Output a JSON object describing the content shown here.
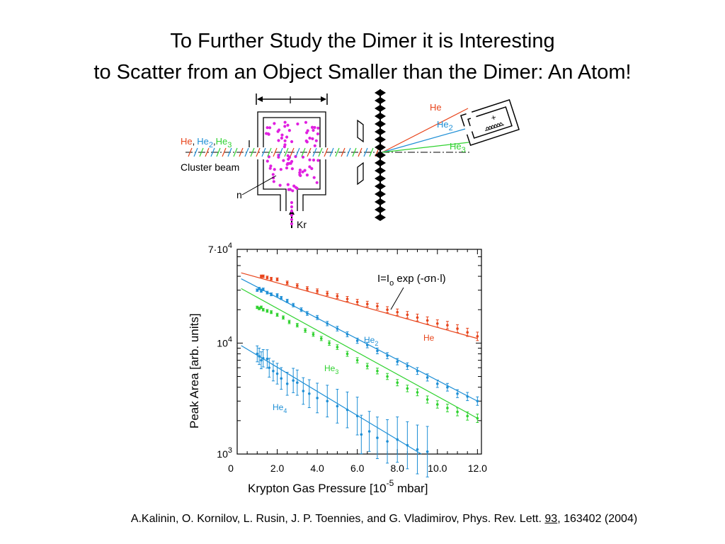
{
  "slide": {
    "title_line1": "To Further Study the Dimer it is Interesting",
    "title_line2": "to Scatter from an Object Smaller than the Dimer: An Atom!",
    "citation_authors": "A.Kalinin, O. Kornilov, L. Rusin, J. P. Toennies, and G. Vladimirov, Phys. Rev. Lett. ",
    "citation_volume": "93",
    "citation_rest": ", 163402 (2004)"
  },
  "diagram": {
    "length_label": "l",
    "beam_label_he": "He",
    "beam_label_he2": "He",
    "beam_label_he2_sub": "2",
    "beam_label_he3": "He",
    "beam_label_he3_sub": "3",
    "beam_label_sep": ",",
    "cluster_beam_label": "Cluster beam",
    "density_label": "n",
    "gas_label": "Kr",
    "detector_plus": "+",
    "scatter_he": "He",
    "scatter_he2": "He",
    "scatter_he2_sub": "2",
    "scatter_he3": "He",
    "scatter_he3_sub": "3",
    "colors": {
      "he": "#e8451c",
      "he2": "#1e8fd6",
      "he3": "#2fd22f",
      "dots": "#e020e0"
    }
  },
  "chart_data": {
    "type": "scatter",
    "xlabel_prefix": "Krypton Gas Pressure [10",
    "xlabel_exp": "-5",
    "xlabel_suffix": " mbar]",
    "ylabel": "Peak Area [arb. units]",
    "x_tick_labels": [
      "0",
      "2.0",
      "4.0",
      "6.0",
      "8.0",
      "10.0",
      "12.0"
    ],
    "y_tick_labels": [
      {
        "base": "10",
        "exp": "3",
        "value": 1000
      },
      {
        "base": "10",
        "exp": "4",
        "value": 10000
      },
      {
        "base": "7·10",
        "exp": "4",
        "value": 70000
      }
    ],
    "xlim": [
      0,
      12.2
    ],
    "ylim": [
      1000,
      70000
    ],
    "y_scale": "log",
    "formula_prefix": "I=I",
    "formula_sub": "o",
    "formula_rest": " exp (-σn·l)",
    "series": [
      {
        "name": "He",
        "label_main": "He",
        "label_sub": "",
        "color": "#e8451c",
        "fit": [
          [
            0.2,
            43000
          ],
          [
            12.0,
            11000
          ]
        ],
        "points": [
          [
            1.2,
            40000
          ],
          [
            1.3,
            40000
          ],
          [
            1.5,
            39000
          ],
          [
            1.7,
            38000
          ],
          [
            2.0,
            37500
          ],
          [
            2.5,
            35000
          ],
          [
            3.0,
            33000
          ],
          [
            3.5,
            31000
          ],
          [
            4.0,
            29500
          ],
          [
            4.5,
            28000
          ],
          [
            5.0,
            26500
          ],
          [
            5.5,
            25000
          ],
          [
            6.0,
            23500
          ],
          [
            6.5,
            22500
          ],
          [
            7.0,
            21500
          ],
          [
            7.5,
            20000
          ],
          [
            8.0,
            19000
          ],
          [
            8.5,
            18000
          ],
          [
            9.0,
            17000
          ],
          [
            9.5,
            16000
          ],
          [
            10.0,
            15000
          ],
          [
            10.5,
            14500
          ],
          [
            11.0,
            13500
          ],
          [
            11.5,
            12500
          ],
          [
            12.0,
            11500
          ]
        ]
      },
      {
        "name": "He2",
        "label_main": "He",
        "label_sub": "2",
        "color": "#1e8fd6",
        "fit": [
          [
            0.2,
            38000
          ],
          [
            12.0,
            3000
          ]
        ],
        "points": [
          [
            1.0,
            30000
          ],
          [
            1.1,
            31000
          ],
          [
            1.2,
            29500
          ],
          [
            1.3,
            30500
          ],
          [
            1.5,
            28500
          ],
          [
            1.7,
            27500
          ],
          [
            2.0,
            27000
          ],
          [
            2.2,
            25500
          ],
          [
            2.5,
            24000
          ],
          [
            2.8,
            22000
          ],
          [
            3.2,
            20000
          ],
          [
            3.5,
            18500
          ],
          [
            4.0,
            17000
          ],
          [
            4.5,
            15000
          ],
          [
            5.0,
            13500
          ],
          [
            5.5,
            12000
          ],
          [
            6.0,
            10500
          ],
          [
            6.5,
            9600
          ],
          [
            7.0,
            8500
          ],
          [
            7.5,
            7700
          ],
          [
            8.0,
            6800
          ],
          [
            8.5,
            6200
          ],
          [
            9.0,
            5600
          ],
          [
            9.5,
            4900
          ],
          [
            10.0,
            4300
          ],
          [
            10.5,
            4000
          ],
          [
            11.0,
            3500
          ],
          [
            11.5,
            3300
          ],
          [
            12.0,
            3000
          ]
        ]
      },
      {
        "name": "He3",
        "label_main": "He",
        "label_sub": "3",
        "color": "#2fd22f",
        "fit": [
          [
            0.2,
            31000
          ],
          [
            12.0,
            2100
          ]
        ],
        "points": [
          [
            1.0,
            21000
          ],
          [
            1.1,
            20500
          ],
          [
            1.2,
            21000
          ],
          [
            1.3,
            20000
          ],
          [
            1.5,
            19500
          ],
          [
            1.7,
            19000
          ],
          [
            2.0,
            18000
          ],
          [
            2.3,
            17000
          ],
          [
            2.6,
            15500
          ],
          [
            3.0,
            14500
          ],
          [
            3.4,
            13000
          ],
          [
            3.8,
            12000
          ],
          [
            4.2,
            11000
          ],
          [
            4.6,
            10000
          ],
          [
            5.0,
            9200
          ],
          [
            5.5,
            8000
          ],
          [
            6.0,
            7000
          ],
          [
            6.5,
            6200
          ],
          [
            7.0,
            5600
          ],
          [
            7.5,
            5000
          ],
          [
            8.0,
            4400
          ],
          [
            8.5,
            3900
          ],
          [
            9.0,
            3600
          ],
          [
            9.5,
            3100
          ],
          [
            10.0,
            2800
          ],
          [
            10.5,
            2600
          ],
          [
            11.0,
            2400
          ],
          [
            11.5,
            2200
          ],
          [
            12.0,
            2100
          ]
        ]
      },
      {
        "name": "He4",
        "label_main": "He",
        "label_sub": "4",
        "color": "#1e8fd6",
        "fit": [
          [
            0.2,
            9500
          ],
          [
            9.2,
            1000
          ]
        ],
        "points": [
          [
            1.0,
            8000
          ],
          [
            1.1,
            7600
          ],
          [
            1.2,
            7000
          ],
          [
            1.3,
            7300
          ],
          [
            1.5,
            7200
          ],
          [
            1.6,
            6000
          ],
          [
            1.8,
            5600
          ],
          [
            2.0,
            5300
          ],
          [
            2.2,
            4800
          ],
          [
            2.5,
            4300
          ],
          [
            2.8,
            4600
          ],
          [
            3.0,
            4400
          ],
          [
            3.3,
            3700
          ],
          [
            3.6,
            3500
          ],
          [
            4.0,
            3200
          ],
          [
            4.5,
            3000
          ],
          [
            5.0,
            2700
          ],
          [
            5.5,
            2500
          ],
          [
            6.0,
            2200
          ],
          [
            6.2,
            1500
          ],
          [
            6.6,
            1600
          ],
          [
            7.0,
            1400
          ],
          [
            7.5,
            1300
          ],
          [
            8.0,
            1350
          ],
          [
            8.5,
            1200
          ],
          [
            9.0,
            1100
          ],
          [
            9.5,
            1050
          ]
        ]
      }
    ]
  }
}
